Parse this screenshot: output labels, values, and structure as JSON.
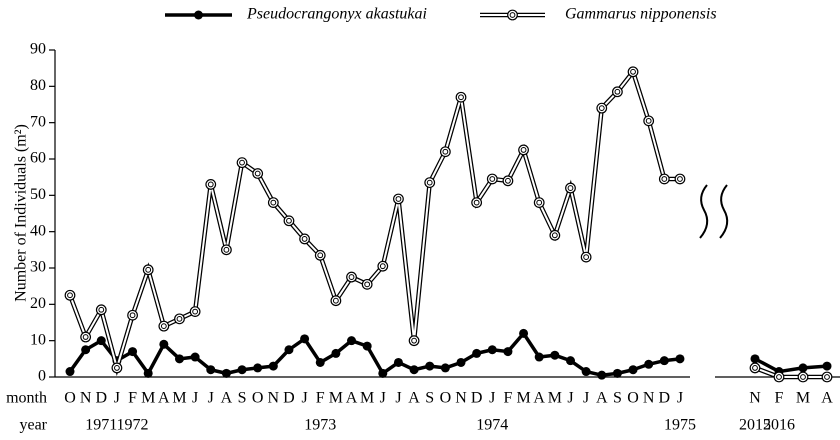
{
  "chart_data": [
    {
      "type": "line",
      "y_label": "Number of Individuals (m²)",
      "row_labels": [
        "month",
        "year"
      ],
      "categories": [
        "O",
        "N",
        "D",
        "J",
        "F",
        "M",
        "A",
        "M",
        "J",
        "J",
        "A",
        "S",
        "O",
        "N",
        "D",
        "J",
        "F",
        "M",
        "A",
        "M",
        "J",
        "J",
        "A",
        "S",
        "O",
        "N",
        "D",
        "J",
        "F",
        "M",
        "A",
        "M",
        "J",
        "J",
        "A",
        "S",
        "O",
        "N",
        "D",
        "J"
      ],
      "years": [
        null,
        null,
        "1971",
        null,
        "1972",
        null,
        null,
        null,
        null,
        null,
        null,
        null,
        null,
        null,
        null,
        null,
        "1973",
        null,
        null,
        null,
        null,
        null,
        null,
        null,
        null,
        null,
        null,
        "1974",
        null,
        null,
        null,
        null,
        null,
        null,
        null,
        null,
        null,
        null,
        null,
        "1975"
      ],
      "ylim": [
        0,
        90
      ],
      "yticks": [
        0,
        10,
        20,
        30,
        40,
        50,
        60,
        70,
        80,
        90
      ],
      "series": [
        {
          "name": "Pseudocrangonyx akastukai",
          "color": "#000000",
          "marker": "filled",
          "values": [
            1.5,
            7.5,
            10,
            4.5,
            7,
            1,
            9,
            5,
            5.5,
            2,
            1,
            2,
            2.5,
            3,
            7.5,
            10.5,
            4,
            6.5,
            10,
            8.5,
            1,
            4,
            2,
            3,
            2.5,
            4,
            6.5,
            7.5,
            7,
            12,
            5.5,
            6,
            4.5,
            1.5,
            0.5,
            1,
            2,
            3.5,
            4.5,
            5
          ]
        },
        {
          "name": "Gammarus nipponensis",
          "color": "#000000",
          "marker": "open",
          "values": [
            22.5,
            11,
            18.5,
            2.5,
            17,
            29.5,
            14,
            16,
            18,
            53,
            35,
            59,
            56,
            48,
            43,
            38,
            33.5,
            21,
            27.5,
            25.5,
            30.5,
            49,
            10,
            53.5,
            62,
            77,
            48,
            54.5,
            54,
            62.5,
            48,
            39,
            52,
            33,
            74,
            78.5,
            84,
            70.5,
            54.5,
            54.5
          ]
        }
      ]
    },
    {
      "type": "line",
      "categories": [
        "N",
        "F",
        "M",
        "A"
      ],
      "years": [
        "2015",
        "2016",
        null,
        null
      ],
      "ylim": [
        0,
        90
      ],
      "series": [
        {
          "color": "#000000",
          "marker": "filled",
          "values": [
            5,
            1.5,
            2.5,
            3
          ]
        },
        {
          "color": "#000000",
          "marker": "open",
          "values": [
            2.5,
            0,
            0,
            0
          ]
        }
      ]
    }
  ]
}
